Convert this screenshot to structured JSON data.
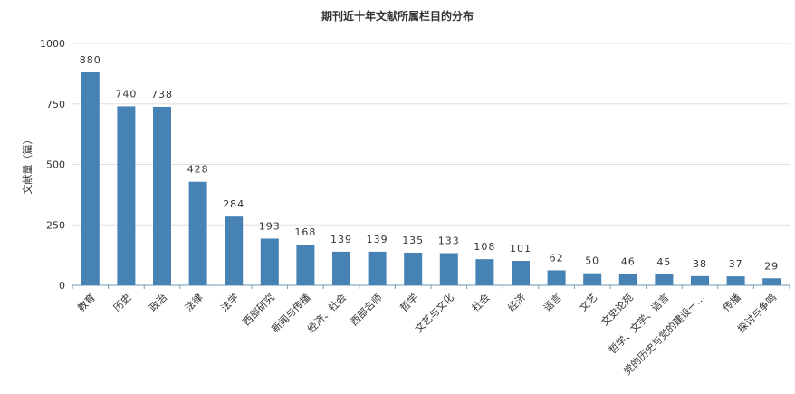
{
  "chart_data": {
    "type": "bar",
    "title": "期刊近十年文献所属栏目的分布",
    "xlabel": "",
    "ylabel": "文献量（篇）",
    "ylim": [
      0,
      1000
    ],
    "yticks": [
      0,
      250,
      500,
      750,
      1000
    ],
    "grid": true,
    "legend": "none",
    "bar_color": "#4682b4",
    "categories": [
      "教育",
      "历史",
      "政治",
      "法律",
      "法学",
      "西部研究",
      "新闻与传播",
      "经济、社会",
      "西部名师",
      "哲学",
      "文艺与文化",
      "社会",
      "经济",
      "语言",
      "文艺",
      "文史论苑",
      "哲学、文学、语言",
      "党的历史与党的建设一…",
      "传播",
      "探讨与争鸣"
    ],
    "values": [
      880,
      740,
      738,
      428,
      284,
      193,
      168,
      139,
      139,
      135,
      133,
      108,
      101,
      62,
      50,
      46,
      45,
      38,
      37,
      29
    ]
  }
}
